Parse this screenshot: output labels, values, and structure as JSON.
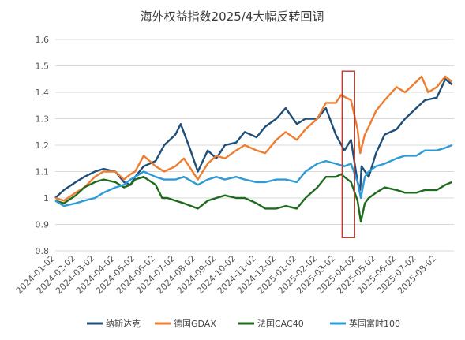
{
  "chart_data": {
    "type": "line",
    "title": "海外权益指数2025/4大幅反转回调",
    "xlabel": "",
    "ylabel": "",
    "ylim": [
      0.8,
      1.6
    ],
    "yticks": [
      "0.8",
      "0.9",
      "1",
      "1.1",
      "1.2",
      "1.3",
      "1.4",
      "1.5",
      "1.6"
    ],
    "x_ticks": [
      "2024-01-02",
      "2024-02-02",
      "2024-03-02",
      "2024-04-02",
      "2024-05-02",
      "2024-06-02",
      "2024-07-02",
      "2024-08-02",
      "2024-09-02",
      "2024-10-02",
      "2024-11-02",
      "2024-12-02",
      "2025-01-02",
      "2025-02-02",
      "2025-03-02",
      "2025-04-02",
      "2025-05-02",
      "2025-06-02",
      "2025-07-02",
      "2025-08-02"
    ],
    "grid": "horizontal",
    "legend_position": "bottom",
    "highlight_box": {
      "x_start": "2025-03-02",
      "x_end": "2025-04-02",
      "y_range": [
        0.85,
        1.48
      ],
      "color": "#c0392b"
    },
    "series": [
      {
        "name": "纳斯达克",
        "color": "#1f4e79",
        "points": [
          [
            "2024-01-02",
            1.0
          ],
          [
            "2024-01-15",
            1.03
          ],
          [
            "2024-02-02",
            1.06
          ],
          [
            "2024-02-15",
            1.08
          ],
          [
            "2024-03-02",
            1.1
          ],
          [
            "2024-03-15",
            1.11
          ],
          [
            "2024-04-02",
            1.1
          ],
          [
            "2024-04-15",
            1.06
          ],
          [
            "2024-04-25",
            1.05
          ],
          [
            "2024-05-02",
            1.08
          ],
          [
            "2024-05-15",
            1.12
          ],
          [
            "2024-06-02",
            1.14
          ],
          [
            "2024-06-15",
            1.2
          ],
          [
            "2024-07-02",
            1.24
          ],
          [
            "2024-07-10",
            1.28
          ],
          [
            "2024-07-25",
            1.18
          ],
          [
            "2024-08-05",
            1.1
          ],
          [
            "2024-08-20",
            1.18
          ],
          [
            "2024-09-02",
            1.15
          ],
          [
            "2024-09-15",
            1.2
          ],
          [
            "2024-10-02",
            1.21
          ],
          [
            "2024-10-15",
            1.25
          ],
          [
            "2024-11-02",
            1.23
          ],
          [
            "2024-11-15",
            1.27
          ],
          [
            "2024-12-02",
            1.3
          ],
          [
            "2024-12-16",
            1.34
          ],
          [
            "2025-01-02",
            1.28
          ],
          [
            "2025-01-15",
            1.3
          ],
          [
            "2025-02-02",
            1.3
          ],
          [
            "2025-02-15",
            1.34
          ],
          [
            "2025-03-02",
            1.24
          ],
          [
            "2025-03-15",
            1.18
          ],
          [
            "2025-03-25",
            1.22
          ],
          [
            "2025-04-04",
            1.06
          ],
          [
            "2025-04-08",
            1.03
          ],
          [
            "2025-04-10",
            1.12
          ],
          [
            "2025-04-21",
            1.08
          ],
          [
            "2025-05-02",
            1.17
          ],
          [
            "2025-05-15",
            1.24
          ],
          [
            "2025-06-02",
            1.26
          ],
          [
            "2025-06-15",
            1.3
          ],
          [
            "2025-07-02",
            1.34
          ],
          [
            "2025-07-15",
            1.37
          ],
          [
            "2025-08-02",
            1.38
          ],
          [
            "2025-08-15",
            1.45
          ],
          [
            "2025-08-25",
            1.43
          ]
        ]
      },
      {
        "name": "德国GDAX",
        "color": "#ed7d31",
        "points": [
          [
            "2024-01-02",
            1.0
          ],
          [
            "2024-01-15",
            0.99
          ],
          [
            "2024-02-02",
            1.02
          ],
          [
            "2024-02-15",
            1.04
          ],
          [
            "2024-03-02",
            1.08
          ],
          [
            "2024-03-15",
            1.1
          ],
          [
            "2024-04-02",
            1.1
          ],
          [
            "2024-04-15",
            1.07
          ],
          [
            "2024-04-25",
            1.09
          ],
          [
            "2024-05-02",
            1.1
          ],
          [
            "2024-05-15",
            1.16
          ],
          [
            "2024-06-02",
            1.12
          ],
          [
            "2024-06-15",
            1.1
          ],
          [
            "2024-07-02",
            1.12
          ],
          [
            "2024-07-15",
            1.15
          ],
          [
            "2024-08-05",
            1.07
          ],
          [
            "2024-08-20",
            1.13
          ],
          [
            "2024-09-02",
            1.16
          ],
          [
            "2024-09-15",
            1.15
          ],
          [
            "2024-10-02",
            1.18
          ],
          [
            "2024-10-15",
            1.2
          ],
          [
            "2024-11-02",
            1.18
          ],
          [
            "2024-11-15",
            1.17
          ],
          [
            "2024-12-02",
            1.22
          ],
          [
            "2024-12-16",
            1.25
          ],
          [
            "2025-01-02",
            1.22
          ],
          [
            "2025-01-15",
            1.26
          ],
          [
            "2025-02-02",
            1.3
          ],
          [
            "2025-02-15",
            1.36
          ],
          [
            "2025-03-02",
            1.36
          ],
          [
            "2025-03-10",
            1.39
          ],
          [
            "2025-03-25",
            1.37
          ],
          [
            "2025-04-04",
            1.26
          ],
          [
            "2025-04-08",
            1.17
          ],
          [
            "2025-04-15",
            1.24
          ],
          [
            "2025-04-21",
            1.27
          ],
          [
            "2025-05-02",
            1.33
          ],
          [
            "2025-05-15",
            1.37
          ],
          [
            "2025-06-02",
            1.42
          ],
          [
            "2025-06-15",
            1.4
          ],
          [
            "2025-07-02",
            1.44
          ],
          [
            "2025-07-10",
            1.46
          ],
          [
            "2025-07-20",
            1.4
          ],
          [
            "2025-08-02",
            1.42
          ],
          [
            "2025-08-15",
            1.46
          ],
          [
            "2025-08-25",
            1.44
          ]
        ]
      },
      {
        "name": "法国CAC40",
        "color": "#1e6b1e",
        "points": [
          [
            "2024-01-02",
            0.99
          ],
          [
            "2024-01-15",
            0.98
          ],
          [
            "2024-02-02",
            1.01
          ],
          [
            "2024-02-15",
            1.04
          ],
          [
            "2024-03-02",
            1.06
          ],
          [
            "2024-03-15",
            1.07
          ],
          [
            "2024-04-02",
            1.06
          ],
          [
            "2024-04-15",
            1.04
          ],
          [
            "2024-04-25",
            1.05
          ],
          [
            "2024-05-02",
            1.07
          ],
          [
            "2024-05-15",
            1.08
          ],
          [
            "2024-06-02",
            1.05
          ],
          [
            "2024-06-12",
            1.0
          ],
          [
            "2024-06-20",
            1.0
          ],
          [
            "2024-07-02",
            0.99
          ],
          [
            "2024-07-15",
            0.98
          ],
          [
            "2024-08-05",
            0.96
          ],
          [
            "2024-08-20",
            0.99
          ],
          [
            "2024-09-02",
            1.0
          ],
          [
            "2024-09-15",
            1.01
          ],
          [
            "2024-10-02",
            1.0
          ],
          [
            "2024-10-15",
            1.0
          ],
          [
            "2024-11-02",
            0.98
          ],
          [
            "2024-11-15",
            0.96
          ],
          [
            "2024-12-02",
            0.96
          ],
          [
            "2024-12-16",
            0.97
          ],
          [
            "2025-01-02",
            0.96
          ],
          [
            "2025-01-15",
            1.0
          ],
          [
            "2025-02-02",
            1.04
          ],
          [
            "2025-02-15",
            1.08
          ],
          [
            "2025-03-02",
            1.08
          ],
          [
            "2025-03-10",
            1.09
          ],
          [
            "2025-03-25",
            1.06
          ],
          [
            "2025-04-04",
            0.99
          ],
          [
            "2025-04-09",
            0.91
          ],
          [
            "2025-04-15",
            0.98
          ],
          [
            "2025-04-21",
            1.0
          ],
          [
            "2025-05-02",
            1.02
          ],
          [
            "2025-05-15",
            1.04
          ],
          [
            "2025-06-02",
            1.03
          ],
          [
            "2025-06-15",
            1.02
          ],
          [
            "2025-07-02",
            1.02
          ],
          [
            "2025-07-15",
            1.03
          ],
          [
            "2025-08-02",
            1.03
          ],
          [
            "2025-08-15",
            1.05
          ],
          [
            "2025-08-25",
            1.06
          ]
        ]
      },
      {
        "name": "英国富时100",
        "color": "#2e9bd6",
        "points": [
          [
            "2024-01-02",
            0.99
          ],
          [
            "2024-01-15",
            0.97
          ],
          [
            "2024-02-02",
            0.98
          ],
          [
            "2024-02-15",
            0.99
          ],
          [
            "2024-03-02",
            1.0
          ],
          [
            "2024-03-15",
            1.02
          ],
          [
            "2024-04-02",
            1.04
          ],
          [
            "2024-04-15",
            1.05
          ],
          [
            "2024-04-25",
            1.07
          ],
          [
            "2024-05-02",
            1.08
          ],
          [
            "2024-05-15",
            1.1
          ],
          [
            "2024-06-02",
            1.08
          ],
          [
            "2024-06-15",
            1.07
          ],
          [
            "2024-07-02",
            1.07
          ],
          [
            "2024-07-15",
            1.08
          ],
          [
            "2024-08-05",
            1.05
          ],
          [
            "2024-08-20",
            1.07
          ],
          [
            "2024-09-02",
            1.08
          ],
          [
            "2024-09-15",
            1.07
          ],
          [
            "2024-10-02",
            1.08
          ],
          [
            "2024-10-15",
            1.07
          ],
          [
            "2024-11-02",
            1.06
          ],
          [
            "2024-11-15",
            1.06
          ],
          [
            "2024-12-02",
            1.07
          ],
          [
            "2024-12-16",
            1.07
          ],
          [
            "2025-01-02",
            1.06
          ],
          [
            "2025-01-15",
            1.1
          ],
          [
            "2025-02-02",
            1.13
          ],
          [
            "2025-02-15",
            1.14
          ],
          [
            "2025-03-02",
            1.13
          ],
          [
            "2025-03-15",
            1.12
          ],
          [
            "2025-03-25",
            1.13
          ],
          [
            "2025-04-04",
            1.06
          ],
          [
            "2025-04-09",
            1.0
          ],
          [
            "2025-04-15",
            1.08
          ],
          [
            "2025-04-21",
            1.1
          ],
          [
            "2025-05-02",
            1.12
          ],
          [
            "2025-05-15",
            1.13
          ],
          [
            "2025-06-02",
            1.15
          ],
          [
            "2025-06-15",
            1.16
          ],
          [
            "2025-07-02",
            1.16
          ],
          [
            "2025-07-15",
            1.18
          ],
          [
            "2025-08-02",
            1.18
          ],
          [
            "2025-08-15",
            1.19
          ],
          [
            "2025-08-25",
            1.2
          ]
        ]
      }
    ]
  }
}
